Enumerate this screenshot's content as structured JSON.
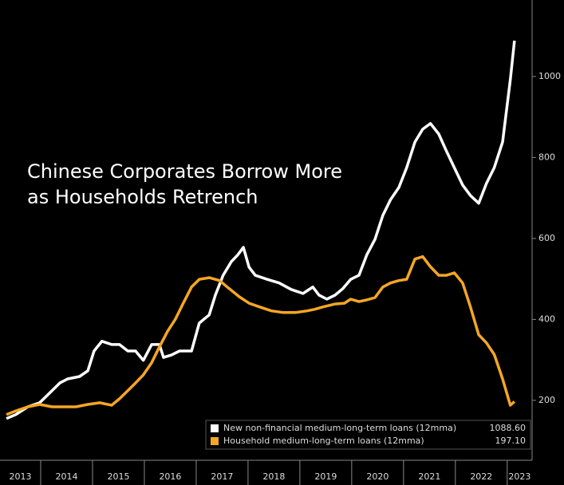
{
  "chart_data": {
    "type": "line",
    "title_lines": [
      "Chinese Corporates Borrow More",
      "as Households Retrench"
    ],
    "xlim": [
      2013.215,
      2023.48
    ],
    "xticks": [
      2014,
      2015,
      2016,
      2017,
      2018,
      2019,
      2020,
      2021,
      2022,
      2023
    ],
    "xlabels": [
      "2013",
      "2014",
      "2015",
      "2016",
      "2017",
      "2018",
      "2019",
      "2020",
      "2021",
      "2022",
      "2023"
    ],
    "ylim": [
      52,
      1189
    ],
    "yticks": [
      200,
      400,
      600,
      800,
      1000
    ],
    "grid": false,
    "legend": "bottom-right",
    "series": [
      {
        "name": "New non-financial medium-long-term loans (12mma)",
        "color": "#ffffff",
        "last_value_label": "1088.60",
        "x": [
          2013.34,
          2013.52,
          2013.75,
          2013.98,
          2014.14,
          2014.37,
          2014.52,
          2014.75,
          2014.91,
          2015.03,
          2015.18,
          2015.37,
          2015.52,
          2015.68,
          2015.83,
          2015.98,
          2016.14,
          2016.29,
          2016.37,
          2016.52,
          2016.68,
          2016.91,
          2017.06,
          2017.25,
          2017.37,
          2017.52,
          2017.68,
          2017.8,
          2017.91,
          2018.02,
          2018.14,
          2018.37,
          2018.6,
          2018.83,
          2019.06,
          2019.25,
          2019.37,
          2019.52,
          2019.68,
          2019.83,
          2019.98,
          2020.14,
          2020.29,
          2020.45,
          2020.6,
          2020.75,
          2020.91,
          2021.06,
          2021.22,
          2021.37,
          2021.52,
          2021.68,
          2021.83,
          2021.98,
          2022.14,
          2022.29,
          2022.45,
          2022.6,
          2022.75,
          2022.91,
          2023.06,
          2023.14
        ],
        "values": [
          155,
          165,
          184,
          194,
          214,
          243,
          253,
          259,
          273,
          322,
          346,
          338,
          338,
          322,
          322,
          299,
          338,
          338,
          306,
          312,
          322,
          322,
          391,
          411,
          460,
          509,
          543,
          559,
          578,
          529,
          509,
          499,
          490,
          474,
          464,
          480,
          460,
          450,
          460,
          476,
          499,
          509,
          559,
          598,
          657,
          696,
          726,
          775,
          838,
          870,
          884,
          858,
          815,
          775,
          732,
          706,
          687,
          736,
          775,
          838,
          992,
          1088.6
        ]
      },
      {
        "name": "Household medium-long-term loans (12mma)",
        "color": "#f5a623",
        "last_value_label": "197.10",
        "x": [
          2013.34,
          2013.52,
          2013.75,
          2013.98,
          2014.22,
          2014.45,
          2014.68,
          2014.91,
          2015.14,
          2015.37,
          2015.52,
          2015.68,
          2015.83,
          2015.98,
          2016.14,
          2016.29,
          2016.45,
          2016.6,
          2016.75,
          2016.91,
          2017.06,
          2017.25,
          2017.45,
          2017.6,
          2017.83,
          2018.02,
          2018.22,
          2018.45,
          2018.68,
          2018.91,
          2019.14,
          2019.29,
          2019.45,
          2019.68,
          2019.86,
          2019.98,
          2020.14,
          2020.29,
          2020.45,
          2020.6,
          2020.75,
          2020.91,
          2021.06,
          2021.22,
          2021.37,
          2021.52,
          2021.68,
          2021.83,
          2021.98,
          2022.14,
          2022.29,
          2022.45,
          2022.6,
          2022.75,
          2022.91,
          2023.06,
          2023.14
        ],
        "values": [
          165,
          174,
          184,
          190,
          184,
          184,
          184,
          190,
          194,
          188,
          204,
          224,
          243,
          263,
          293,
          332,
          371,
          401,
          440,
          480,
          499,
          503,
          496,
          480,
          456,
          440,
          431,
          421,
          417,
          417,
          421,
          425,
          431,
          438,
          440,
          450,
          444,
          448,
          454,
          480,
          490,
          496,
          499,
          549,
          555,
          530,
          509,
          509,
          515,
          490,
          431,
          362,
          342,
          313,
          253,
          188,
          197.1
        ]
      }
    ]
  }
}
